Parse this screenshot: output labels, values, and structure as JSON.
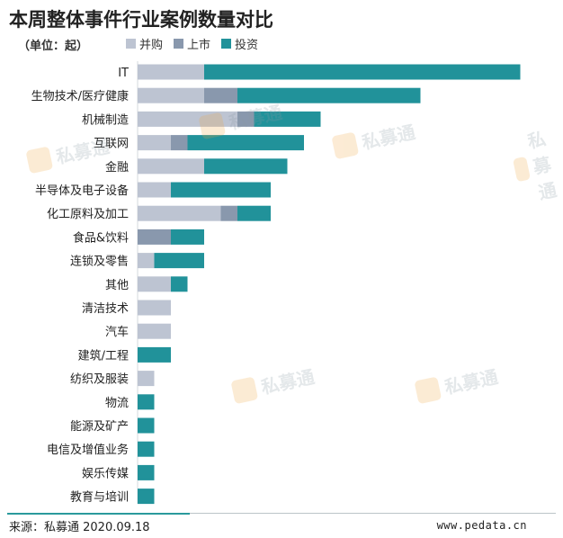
{
  "title": "本周整体事件行业案例数量对比",
  "unit_label": "（单位：起）",
  "source": "来源：私募通 2020.09.18",
  "site": "www.pedata.cn",
  "watermark": "私募通",
  "chart_data": {
    "type": "bar",
    "orientation": "horizontal",
    "stacked": true,
    "title": "本周整体事件行业案例数量对比",
    "categories": [
      "IT",
      "生物技术/医疗健康",
      "机械制造",
      "互联网",
      "金融",
      "半导体及电子设备",
      "化工原料及加工",
      "食品&饮料",
      "连锁及零售",
      "其他",
      "清洁技术",
      "汽车",
      "建筑/工程",
      "纺织及服装",
      "物流",
      "能源及矿产",
      "电信及增值业务",
      "娱乐传媒",
      "教育与培训"
    ],
    "series": [
      {
        "name": "并购",
        "color": "#bdc4d2",
        "values": [
          4,
          4,
          6,
          2,
          4,
          2,
          5,
          0,
          1,
          2,
          2,
          2,
          0,
          1,
          0,
          0,
          0,
          0,
          0
        ]
      },
      {
        "name": "上市",
        "color": "#8998ad",
        "values": [
          0,
          2,
          1,
          1,
          0,
          0,
          1,
          2,
          0,
          0,
          0,
          0,
          0,
          0,
          0,
          0,
          0,
          0,
          0
        ]
      },
      {
        "name": "投资",
        "color": "#21929a",
        "values": [
          19,
          11,
          4,
          7,
          5,
          6,
          2,
          2,
          3,
          1,
          0,
          0,
          2,
          0,
          1,
          1,
          1,
          1,
          1
        ]
      }
    ],
    "legend_position": "top-left",
    "grid": false
  }
}
